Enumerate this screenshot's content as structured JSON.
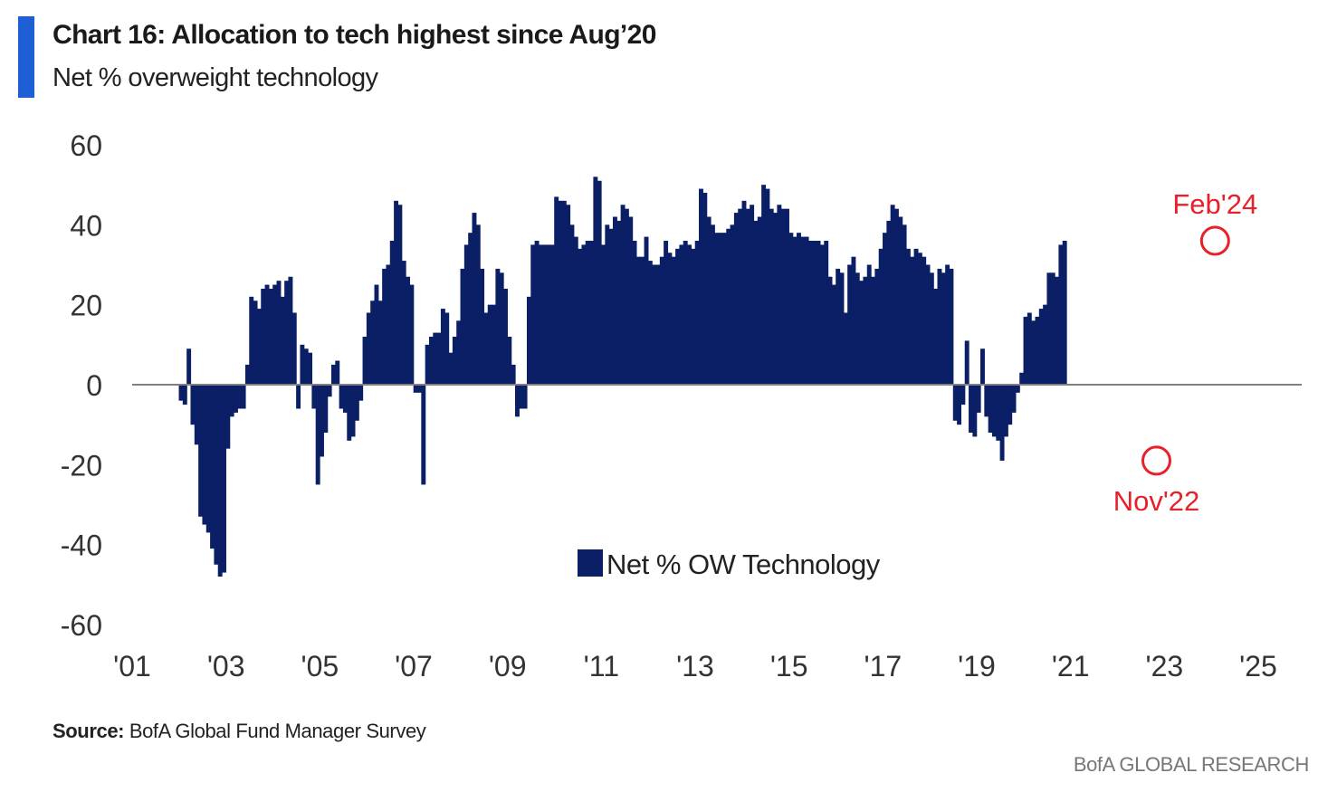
{
  "header": {
    "title": "Chart 16: Allocation to tech highest since Aug’20",
    "subtitle": "Net % overweight technology"
  },
  "source": {
    "label": "Source:",
    "text": " BofA Global Fund Manager Survey"
  },
  "footer": {
    "brand": "BofA GLOBAL RESEARCH"
  },
  "colors": {
    "bar": "#0b1f66",
    "accent": "#1f5fd6",
    "annotation": "#e8202a",
    "zero_line": "#808080"
  },
  "chart_data": {
    "type": "bar",
    "title": "Chart 16: Allocation to tech highest since Aug’20",
    "subtitle": "Net % overweight technology",
    "ylim": [
      -60,
      60
    ],
    "yticks": [
      60,
      40,
      20,
      0,
      -20,
      -40,
      -60
    ],
    "xlim": [
      2001,
      2025
    ],
    "xticks": [
      {
        "value": 2001,
        "label": "'01"
      },
      {
        "value": 2003,
        "label": "'03"
      },
      {
        "value": 2005,
        "label": "'05"
      },
      {
        "value": 2007,
        "label": "'07"
      },
      {
        "value": 2009,
        "label": "'09"
      },
      {
        "value": 2011,
        "label": "'11"
      },
      {
        "value": 2013,
        "label": "'13"
      },
      {
        "value": 2015,
        "label": "'15"
      },
      {
        "value": 2017,
        "label": "'17"
      },
      {
        "value": 2019,
        "label": "'19"
      },
      {
        "value": 2021,
        "label": "'21"
      },
      {
        "value": 2023,
        "label": "'23"
      },
      {
        "value": 2025,
        "label": "'25"
      }
    ],
    "grid": false,
    "legend": {
      "position": "center-bottom",
      "entries": [
        "Net % OW Technology"
      ]
    },
    "series": [
      {
        "name": "Net % OW Technology",
        "x_start": 2002.0,
        "frequency": "monthly",
        "values": [
          -4,
          -5,
          9,
          -10,
          -15,
          -33,
          -35,
          -37,
          -41,
          -45,
          -48,
          -47,
          -16,
          -8,
          -7,
          -6,
          -6,
          5,
          22,
          21,
          19,
          24,
          25,
          24,
          25,
          26,
          22,
          26,
          27,
          18,
          -6,
          10,
          9,
          8,
          -6,
          -25,
          -18,
          -12,
          -3,
          5,
          6,
          -6,
          -7,
          -14,
          -13,
          -9,
          -4,
          12,
          18,
          21,
          25,
          21,
          29,
          30,
          36,
          46,
          45,
          31,
          27,
          25,
          -2,
          -2,
          -25,
          10,
          12,
          13,
          13,
          19,
          18,
          8,
          12,
          16,
          29,
          35,
          38,
          43,
          40,
          29,
          18,
          20,
          20,
          29,
          28,
          24,
          12,
          5,
          -8,
          -6,
          -6,
          22,
          35,
          36,
          35,
          35,
          35,
          35,
          47,
          46,
          46,
          45,
          40,
          37,
          34,
          35,
          36,
          36,
          52,
          51,
          35,
          40,
          39,
          42,
          41,
          45,
          44,
          42,
          36,
          32,
          32,
          37,
          31,
          30,
          30,
          32,
          36,
          33,
          32,
          34,
          35,
          36,
          35,
          34,
          36,
          49,
          48,
          42,
          40,
          38,
          38,
          38,
          39,
          40,
          43,
          44,
          46,
          44,
          45,
          41,
          42,
          50,
          49,
          44,
          43,
          45,
          44,
          44,
          38,
          37,
          38,
          37,
          37,
          36,
          36,
          36,
          35,
          36,
          27,
          25,
          29,
          28,
          18,
          30,
          32,
          28,
          26,
          27,
          30,
          27,
          29,
          34,
          38,
          41,
          45,
          44,
          42,
          40,
          34,
          32,
          34,
          33,
          32,
          30,
          28,
          24,
          29,
          28,
          30,
          29,
          -9,
          -10,
          -5,
          11,
          -12,
          -13,
          -7,
          9,
          -8,
          -12,
          -13,
          -14,
          -19,
          -13,
          -10,
          -7,
          -2,
          3,
          17,
          18,
          16,
          17,
          19,
          20,
          28,
          28,
          27,
          35,
          36
        ]
      }
    ],
    "annotations": [
      {
        "label": "Feb'24",
        "x": 2024.08,
        "y": 36
      },
      {
        "label": "Nov'22",
        "x": 2022.83,
        "y": -19
      }
    ]
  }
}
